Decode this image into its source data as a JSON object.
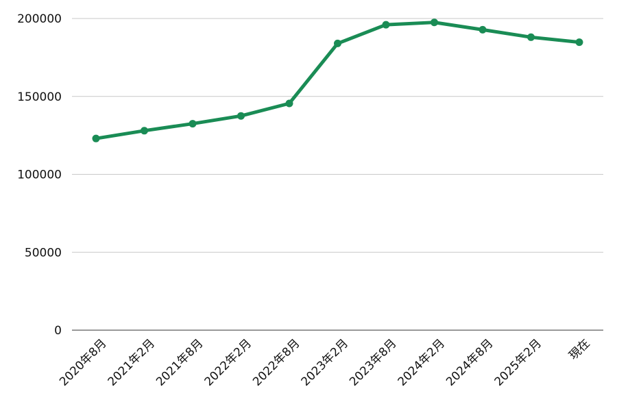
{
  "chart_data": {
    "type": "line",
    "title": "",
    "xlabel": "",
    "ylabel": "",
    "categories": [
      "2020年8月",
      "2021年2月",
      "2021年8月",
      "2022年2月",
      "2022年8月",
      "2023年2月",
      "2023年8月",
      "2024年2月",
      "2024年8月",
      "2025年2月",
      "現在"
    ],
    "series": [
      {
        "values": [
          123000,
          128000,
          132500,
          137500,
          145500,
          184000,
          196000,
          197500,
          192800,
          188000,
          184800
        ],
        "color": "#1a8c55"
      }
    ],
    "ylim": [
      0,
      200000
    ],
    "yticks": [
      "0",
      "50000",
      "100000",
      "150000",
      "200000"
    ],
    "grid": true,
    "legend": "none"
  }
}
